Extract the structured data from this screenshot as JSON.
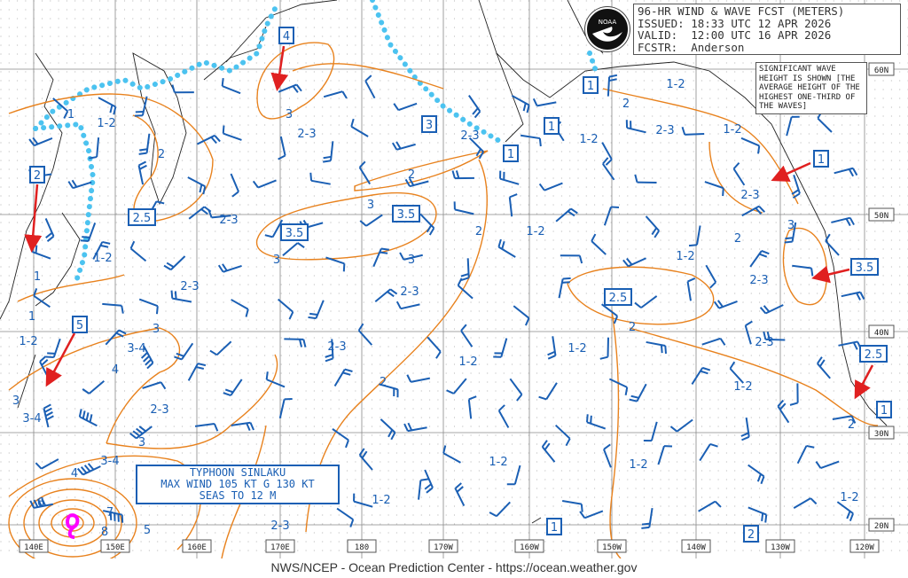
{
  "header": {
    "title": "96-HR WIND & WAVE FCST (METERS)",
    "issued": "ISSUED: 18:33 UTC 12 APR 2026",
    "valid": "VALID:  12:00 UTC 16 APR 2026",
    "forecaster": "FCSTR:  Anderson"
  },
  "logo": {
    "text": "NOAA"
  },
  "legend_note": "SIGNIFICANT WAVE HEIGHT IS SHOWN [THE AVERAGE HEIGHT OF THE HIGHEST ONE-THIRD OF THE WAVES]",
  "typhoon": {
    "name": "TYPHOON SINLAKU",
    "wind": "MAX WIND 105 KT G 130 KT",
    "seas": "SEAS TO 12 M"
  },
  "footer": "NWS/NCEP - Ocean Prediction Center - https://ocean.weather.gov",
  "longitude_labels": [
    "140E",
    "150E",
    "160E",
    "170E",
    "180",
    "170W",
    "160W",
    "150W",
    "140W",
    "130W",
    "120W"
  ],
  "latitude_labels": [
    "60N",
    "50N",
    "40N",
    "30N",
    "20N"
  ],
  "wave_labels": [
    "1",
    "1-2",
    "2",
    "2-3",
    "1-2",
    "1",
    "1",
    "1-2",
    "3-4",
    "3",
    "4",
    "3",
    "3-4",
    "2-3",
    "3",
    "3-4",
    "4",
    "6",
    "7",
    "8",
    "5",
    "2-3",
    "2-3",
    "2-3",
    "3",
    "2-3",
    "3",
    "3",
    "2",
    "3",
    "2-3",
    "2",
    "1-2",
    "2",
    "1-2",
    "1-2",
    "1-2",
    "1-2",
    "2-3",
    "1-2",
    "1-2",
    "2",
    "2-3",
    "1-2",
    "1-2",
    "2-3",
    "2",
    "3",
    "1-2",
    "2-3",
    "2",
    "2-3",
    "1-2",
    "1-2",
    "2"
  ],
  "max_height_boxes": [
    "4",
    "2",
    "2.5",
    "3.5",
    "3.5",
    "3",
    "1",
    "1",
    "1",
    "5",
    "2.5",
    "1",
    "3.5",
    "2.5",
    "1",
    "1",
    "2"
  ],
  "colors": {
    "wave_contour": "#e8821e",
    "wind_barb": "#1a5fb4",
    "ice_edge": "#4cc3f0",
    "arrow": "#e02020",
    "typhoon_symbol": "#ff00ff"
  }
}
